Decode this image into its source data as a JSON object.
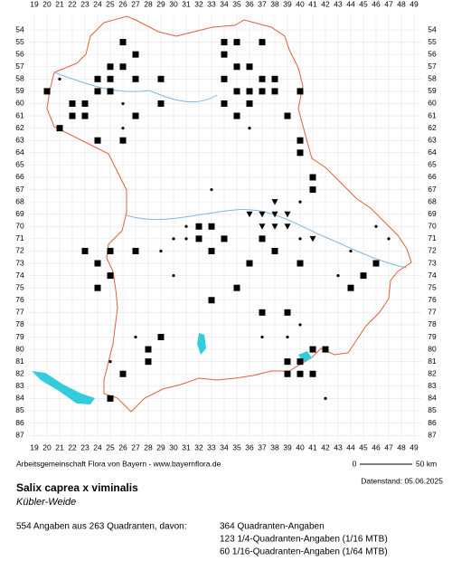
{
  "grid": {
    "columns": [
      19,
      20,
      21,
      22,
      23,
      24,
      25,
      26,
      27,
      28,
      29,
      30,
      31,
      32,
      33,
      34,
      35,
      36,
      37,
      38,
      39,
      40,
      41,
      42,
      43,
      44,
      45,
      46,
      47,
      48,
      49
    ],
    "rows": [
      54,
      55,
      56,
      57,
      58,
      59,
      60,
      61,
      62,
      63,
      64,
      65,
      66,
      67,
      68,
      69,
      70,
      71,
      72,
      73,
      74,
      75,
      76,
      77,
      78,
      79,
      80,
      81,
      82,
      83,
      84,
      85,
      86,
      87
    ]
  },
  "markers": {
    "squares": [
      [
        26,
        55
      ],
      [
        27,
        56
      ],
      [
        25,
        57
      ],
      [
        26,
        57
      ],
      [
        24,
        58
      ],
      [
        25,
        58
      ],
      [
        27,
        58
      ],
      [
        24,
        59
      ],
      [
        25,
        59
      ],
      [
        22,
        60
      ],
      [
        23,
        60
      ],
      [
        23,
        61
      ],
      [
        22,
        61
      ],
      [
        20,
        59
      ],
      [
        21,
        62
      ],
      [
        27,
        61
      ],
      [
        26,
        63
      ],
      [
        24,
        63
      ],
      [
        29,
        60
      ],
      [
        29,
        58
      ],
      [
        34,
        55
      ],
      [
        35,
        55
      ],
      [
        37,
        55
      ],
      [
        34,
        56
      ],
      [
        35,
        57
      ],
      [
        36,
        57
      ],
      [
        37,
        58
      ],
      [
        38,
        58
      ],
      [
        34,
        58
      ],
      [
        35,
        59
      ],
      [
        36,
        59
      ],
      [
        37,
        59
      ],
      [
        38,
        59
      ],
      [
        36,
        60
      ],
      [
        34,
        60
      ],
      [
        35,
        61
      ],
      [
        39,
        61
      ],
      [
        40,
        59
      ],
      [
        40,
        63
      ],
      [
        40,
        64
      ],
      [
        41,
        67
      ],
      [
        41,
        66
      ],
      [
        32,
        70
      ],
      [
        33,
        70
      ],
      [
        34,
        71
      ],
      [
        33,
        72
      ],
      [
        32,
        71
      ],
      [
        37,
        71
      ],
      [
        38,
        72
      ],
      [
        27,
        72
      ],
      [
        25,
        72
      ],
      [
        24,
        73
      ],
      [
        25,
        74
      ],
      [
        23,
        72
      ],
      [
        24,
        75
      ],
      [
        29,
        79
      ],
      [
        28,
        80
      ],
      [
        28,
        81
      ],
      [
        26,
        82
      ],
      [
        25,
        84
      ],
      [
        33,
        76
      ],
      [
        35,
        75
      ],
      [
        36,
        73
      ],
      [
        37,
        77
      ],
      [
        39,
        77
      ],
      [
        39,
        81
      ],
      [
        40,
        81
      ],
      [
        41,
        80
      ],
      [
        42,
        80
      ],
      [
        41,
        82
      ],
      [
        40,
        82
      ],
      [
        39,
        82
      ],
      [
        46,
        73
      ],
      [
        45,
        74
      ],
      [
        44,
        75
      ],
      [
        40,
        73
      ]
    ],
    "dots": [
      [
        21,
        58
      ],
      [
        26,
        60
      ],
      [
        26,
        62
      ],
      [
        31,
        71
      ],
      [
        30,
        71
      ],
      [
        29,
        72
      ],
      [
        33,
        67
      ],
      [
        36,
        62
      ],
      [
        40,
        68
      ],
      [
        38,
        70
      ],
      [
        40,
        71
      ],
      [
        44,
        72
      ],
      [
        43,
        74
      ],
      [
        46,
        70
      ],
      [
        47,
        71
      ],
      [
        31,
        70
      ],
      [
        30,
        74
      ],
      [
        27,
        79
      ],
      [
        37,
        79
      ],
      [
        39,
        79
      ],
      [
        40,
        78
      ],
      [
        42,
        84
      ],
      [
        25,
        81
      ]
    ],
    "triangles": [
      [
        36,
        69
      ],
      [
        37,
        69
      ],
      [
        38,
        69
      ],
      [
        39,
        69
      ],
      [
        37,
        70
      ],
      [
        38,
        70
      ],
      [
        39,
        70
      ],
      [
        41,
        71
      ],
      [
        38,
        68
      ]
    ]
  },
  "footer": {
    "credit": "Arbeitsgemeinschaft Flora von Bayern - www.bayernflora.de",
    "scale_start": "0",
    "scale_end": "50 km",
    "date": "Datenstand: 05.06.2025"
  },
  "species": {
    "name": "Salix caprea x viminalis",
    "common_name": "Kübler-Weide"
  },
  "stats": {
    "summary": "554 Angaben aus 263 Quadranten, davon:",
    "lines": [
      "364 Quadranten-Angaben",
      "123 1/4-Quadranten-Angaben (1/16 MTB)",
      "60 1/16-Quadranten-Angaben (1/64 MTB)"
    ]
  }
}
